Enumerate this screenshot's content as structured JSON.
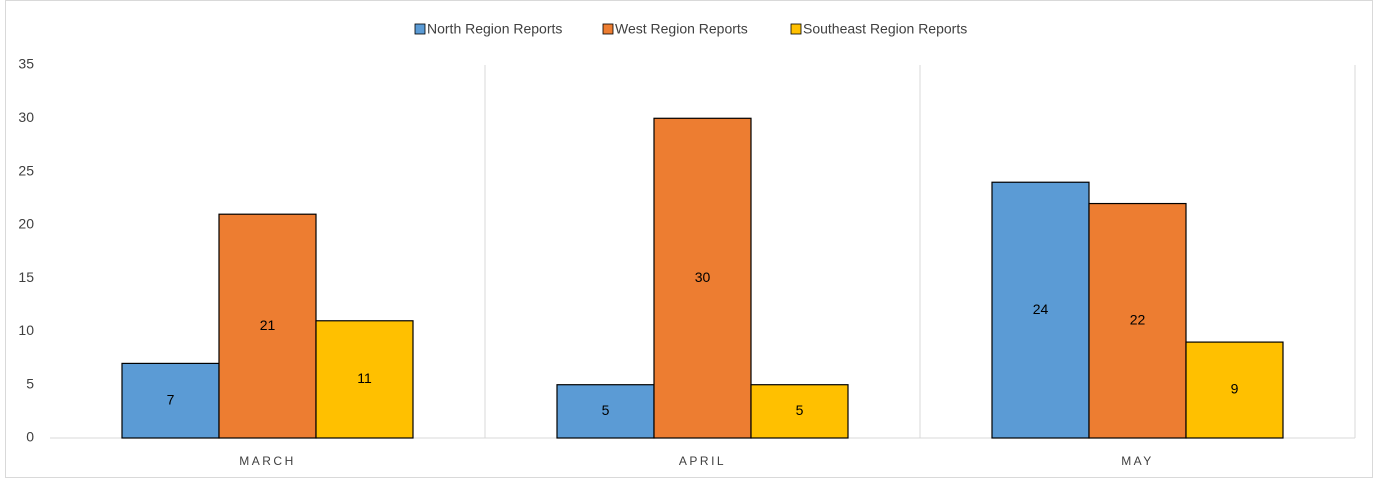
{
  "chart_data": {
    "type": "bar",
    "categories": [
      "MARCH",
      "APRIL",
      "MAY"
    ],
    "series": [
      {
        "name": "North Region Reports",
        "color": "#5b9bd5",
        "values": [
          7,
          5,
          24
        ]
      },
      {
        "name": "West Region Reports",
        "color": "#ed7d31",
        "values": [
          21,
          30,
          22
        ]
      },
      {
        "name": "Southeast Region Reports",
        "color": "#ffc000",
        "values": [
          11,
          5,
          9
        ]
      }
    ],
    "ylim": [
      0,
      35
    ],
    "yticks": [
      0,
      5,
      10,
      15,
      20,
      25,
      30,
      35
    ],
    "grid": false,
    "legend": "top",
    "data_labels": true
  }
}
